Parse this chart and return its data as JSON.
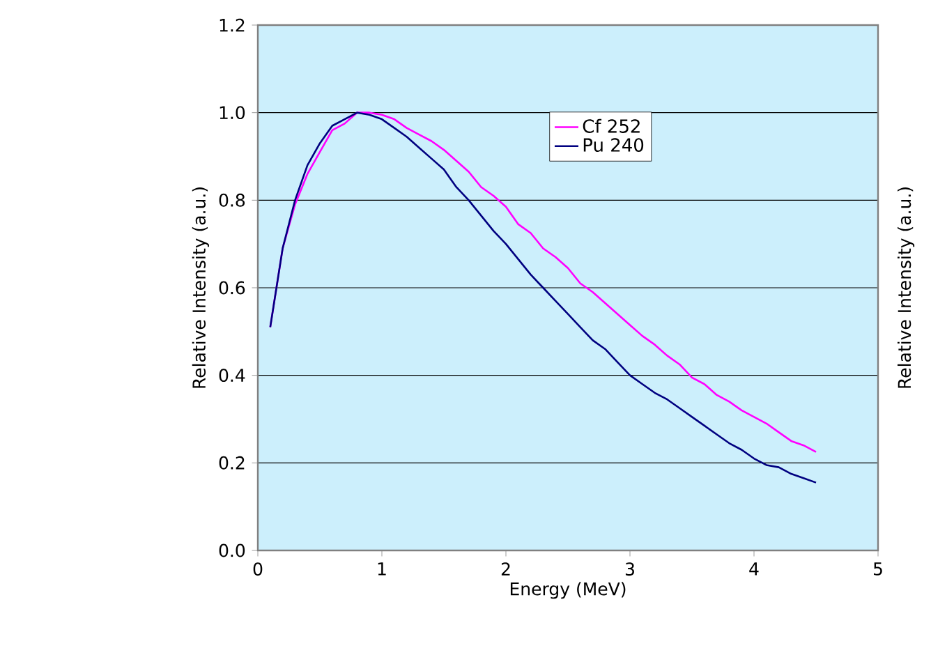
{
  "chart_data": {
    "type": "line",
    "xlabel": "Energy (MeV)",
    "ylabel": "Relative Intensity (a.u.)",
    "y2label": "Relative Intensity (a.u.)",
    "xlim": [
      0,
      5
    ],
    "ylim": [
      0,
      1.2
    ],
    "xticks": [
      0,
      1,
      2,
      3,
      4,
      5
    ],
    "yticks": [
      {
        "value": 0,
        "label": "0.0"
      },
      {
        "value": 0.2,
        "label": "0.2"
      },
      {
        "value": 0.4,
        "label": "0.4"
      },
      {
        "value": 0.6,
        "label": "0.6"
      },
      {
        "value": 0.8,
        "label": "0.8"
      },
      {
        "value": 1.0,
        "label": "1.0"
      },
      {
        "value": 1.2,
        "label": "1.2"
      }
    ],
    "grid": "y",
    "legend": "top right",
    "marker": "none",
    "line_style": "solid",
    "x": [
      0.1,
      0.2,
      0.3,
      0.4,
      0.5,
      0.6,
      0.7,
      0.8,
      0.9,
      1.0,
      1.1,
      1.2,
      1.3,
      1.4,
      1.5,
      1.6,
      1.7,
      1.8,
      1.9,
      2.0,
      2.1,
      2.2,
      2.3,
      2.4,
      2.5,
      2.6,
      2.7,
      2.8,
      2.9,
      3.0,
      3.1,
      3.2,
      3.3,
      3.4,
      3.5,
      3.6,
      3.7,
      3.8,
      3.9,
      4.0,
      4.1,
      4.2,
      4.3,
      4.4,
      4.5
    ],
    "series": [
      {
        "name": "Cf 252",
        "color": "#ff00ff",
        "values": [
          0.51,
          0.69,
          0.79,
          0.86,
          0.91,
          0.96,
          0.975,
          1.0,
          1.0,
          0.995,
          0.985,
          0.965,
          0.95,
          0.935,
          0.915,
          0.89,
          0.865,
          0.83,
          0.81,
          0.785,
          0.745,
          0.725,
          0.69,
          0.67,
          0.645,
          0.61,
          0.59,
          0.565,
          0.54,
          0.515,
          0.49,
          0.47,
          0.445,
          0.425,
          0.395,
          0.38,
          0.355,
          0.34,
          0.32,
          0.305,
          0.29,
          0.27,
          0.25,
          0.24,
          0.225
        ]
      },
      {
        "name": "Pu 240",
        "color": "#000080",
        "values": [
          0.51,
          0.69,
          0.8,
          0.88,
          0.93,
          0.97,
          0.985,
          1.0,
          0.995,
          0.985,
          0.965,
          0.945,
          0.92,
          0.895,
          0.87,
          0.83,
          0.8,
          0.765,
          0.73,
          0.7,
          0.665,
          0.63,
          0.6,
          0.57,
          0.54,
          0.51,
          0.48,
          0.46,
          0.43,
          0.4,
          0.38,
          0.36,
          0.345,
          0.325,
          0.305,
          0.285,
          0.265,
          0.245,
          0.23,
          0.21,
          0.195,
          0.19,
          0.175,
          0.165,
          0.155
        ]
      }
    ]
  }
}
